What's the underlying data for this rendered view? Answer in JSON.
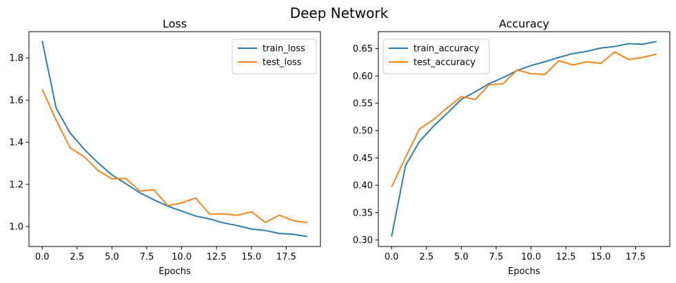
{
  "figure": {
    "title": "Deep Network"
  },
  "chart_data": [
    {
      "type": "line",
      "title": "Loss",
      "xlabel": "Epochs",
      "ylabel": "",
      "legend_placement": "top-right",
      "grid": false,
      "xlim": [
        -0.95,
        19.95
      ],
      "ylim": [
        0.905,
        1.925
      ],
      "x": [
        0,
        1,
        2,
        3,
        4,
        5,
        6,
        7,
        8,
        9,
        10,
        11,
        12,
        13,
        14,
        15,
        16,
        17,
        18,
        19
      ],
      "xticks": [
        0,
        2.5,
        5,
        7.5,
        10,
        12.5,
        15,
        17.5
      ],
      "xtick_labels": [
        "0.0",
        "2.5",
        "5.0",
        "7.5",
        "10.0",
        "12.5",
        "15.0",
        "17.5"
      ],
      "yticks": [
        1.0,
        1.2,
        1.4,
        1.6,
        1.8
      ],
      "ytick_labels": [
        "1.0",
        "1.2",
        "1.4",
        "1.6",
        "1.8"
      ],
      "series": [
        {
          "name": "train_loss",
          "color": "#1f77b4",
          "values": [
            1.882,
            1.562,
            1.444,
            1.368,
            1.302,
            1.245,
            1.203,
            1.16,
            1.127,
            1.097,
            1.073,
            1.05,
            1.036,
            1.017,
            1.004,
            0.988,
            0.981,
            0.967,
            0.963,
            0.952
          ]
        },
        {
          "name": "test_loss",
          "color": "#ff7f0e",
          "values": [
            1.652,
            1.505,
            1.374,
            1.332,
            1.266,
            1.226,
            1.228,
            1.168,
            1.175,
            1.099,
            1.112,
            1.135,
            1.059,
            1.06,
            1.053,
            1.07,
            1.019,
            1.054,
            1.028,
            1.018
          ]
        }
      ]
    },
    {
      "type": "line",
      "title": "Accuracy",
      "xlabel": "Epochs",
      "ylabel": "",
      "legend_placement": "top-left",
      "grid": false,
      "xlim": [
        -0.95,
        19.95
      ],
      "ylim": [
        0.288,
        0.681
      ],
      "x": [
        0,
        1,
        2,
        3,
        4,
        5,
        6,
        7,
        8,
        9,
        10,
        11,
        12,
        13,
        14,
        15,
        16,
        17,
        18,
        19
      ],
      "xticks": [
        0,
        2.5,
        5,
        7.5,
        10,
        12.5,
        15,
        17.5
      ],
      "xtick_labels": [
        "0.0",
        "2.5",
        "5.0",
        "7.5",
        "10.0",
        "12.5",
        "15.0",
        "17.5"
      ],
      "yticks": [
        0.3,
        0.35,
        0.4,
        0.45,
        0.5,
        0.55,
        0.6,
        0.65
      ],
      "ytick_labels": [
        "0.30",
        "0.35",
        "0.40",
        "0.45",
        "0.50",
        "0.55",
        "0.60",
        "0.65"
      ],
      "series": [
        {
          "name": "train_accuracy",
          "color": "#1f77b4",
          "values": [
            0.306,
            0.436,
            0.48,
            0.508,
            0.532,
            0.557,
            0.571,
            0.586,
            0.597,
            0.61,
            0.619,
            0.626,
            0.634,
            0.641,
            0.645,
            0.651,
            0.654,
            0.659,
            0.658,
            0.663
          ]
        },
        {
          "name": "test_accuracy",
          "color": "#ff7f0e",
          "values": [
            0.397,
            0.451,
            0.503,
            0.52,
            0.542,
            0.562,
            0.557,
            0.584,
            0.586,
            0.611,
            0.604,
            0.603,
            0.628,
            0.62,
            0.626,
            0.623,
            0.644,
            0.63,
            0.634,
            0.64
          ]
        }
      ]
    }
  ]
}
